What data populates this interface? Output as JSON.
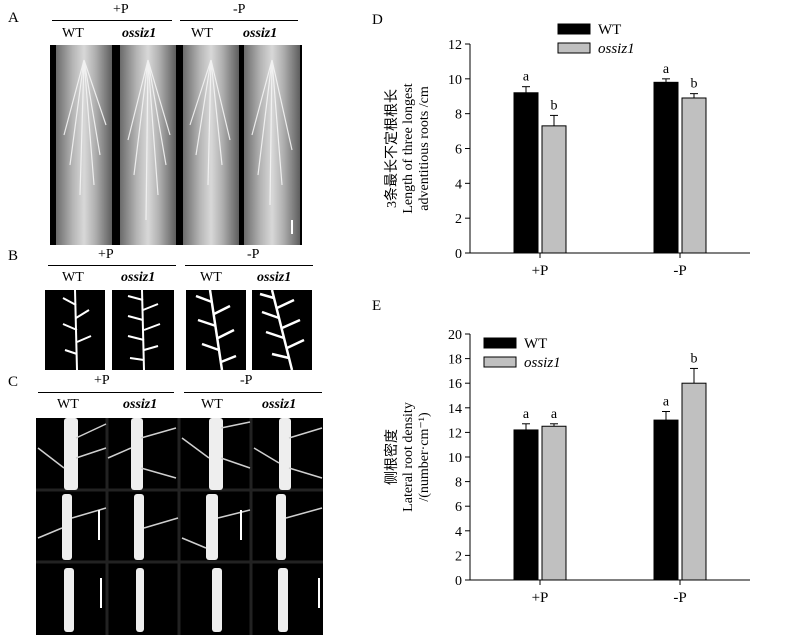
{
  "panels": {
    "A": {
      "letter": "A",
      "groups": [
        "+P",
        "-P"
      ],
      "columns": [
        "WT",
        "ossiz1",
        "WT",
        "ossiz1"
      ]
    },
    "B": {
      "letter": "B",
      "groups": [
        "+P",
        "-P"
      ],
      "columns": [
        "WT",
        "ossiz1",
        "WT",
        "ossiz1"
      ]
    },
    "C": {
      "letter": "C",
      "groups": [
        "+P",
        "-P"
      ],
      "columns": [
        "WT",
        "ossiz1",
        "WT",
        "ossiz1"
      ]
    }
  },
  "chart_data": [
    {
      "panel": "D",
      "type": "bar",
      "categories": [
        "+P",
        "-P"
      ],
      "series": [
        {
          "name": "WT",
          "color": "#000000",
          "values": [
            9.2,
            9.8
          ],
          "errors": [
            0.35,
            0.2
          ],
          "letters": [
            "a",
            "a"
          ]
        },
        {
          "name": "ossiz1",
          "color": "#c0c0c0",
          "values": [
            7.3,
            8.9
          ],
          "errors": [
            0.6,
            0.25
          ],
          "letters": [
            "b",
            "b"
          ]
        }
      ],
      "ylabel": [
        "3条最长不定根根长",
        "Length of three longest",
        "adventitious roots /cm"
      ],
      "ylim": [
        0,
        12
      ],
      "yticks": [
        0,
        2,
        4,
        6,
        8,
        10,
        12
      ],
      "legend": "top-left"
    },
    {
      "panel": "E",
      "type": "bar",
      "categories": [
        "+P",
        "-P"
      ],
      "series": [
        {
          "name": "WT",
          "color": "#000000",
          "values": [
            12.2,
            13.0
          ],
          "errors": [
            0.5,
            0.7
          ],
          "letters": [
            "a",
            "a"
          ]
        },
        {
          "name": "ossiz1",
          "color": "#c0c0c0",
          "values": [
            12.5,
            16.0
          ],
          "errors": [
            0.2,
            1.2
          ],
          "letters": [
            "a",
            "b"
          ]
        }
      ],
      "ylabel": [
        "侧根密度",
        "Lateral root density",
        "/(number·cm⁻¹)"
      ],
      "ylim": [
        0,
        20
      ],
      "yticks": [
        0,
        2,
        4,
        6,
        8,
        10,
        12,
        14,
        16,
        18,
        20
      ],
      "legend": "top-left"
    }
  ],
  "charts_meta": {
    "D": {
      "letter": "D"
    },
    "E": {
      "letter": "E"
    }
  }
}
